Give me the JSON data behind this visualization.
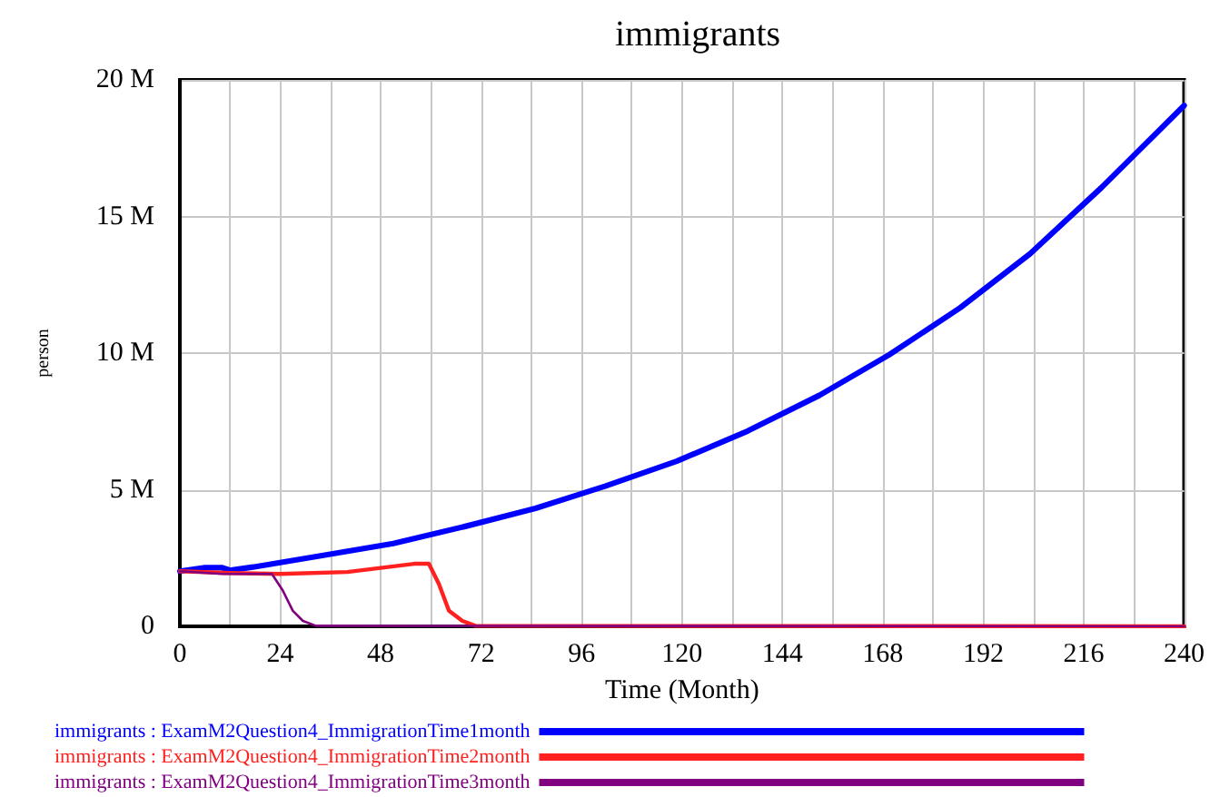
{
  "chart_data": {
    "type": "line",
    "title": "immigrants",
    "xlabel": "Time (Month)",
    "ylabel": "person",
    "xlim": [
      0,
      240
    ],
    "xticks": [
      0,
      {
        "value": 12,
        "label": null
      },
      24,
      {
        "value": 36,
        "label": null
      },
      48,
      {
        "value": 60,
        "label": null
      },
      72,
      {
        "value": 84,
        "label": null
      },
      96,
      {
        "value": 108,
        "label": null
      },
      120,
      {
        "value": 132,
        "label": null
      },
      144,
      {
        "value": 156,
        "label": null
      },
      168,
      {
        "value": 180,
        "label": null
      },
      192,
      {
        "value": 204,
        "label": null
      },
      216,
      {
        "value": 228,
        "label": null
      },
      240
    ],
    "ylim": [
      0,
      20000000
    ],
    "yticks": [
      0,
      {
        "value": 5000000,
        "label": "5 M"
      },
      {
        "value": 10000000,
        "label": "10 M"
      },
      {
        "value": 15000000,
        "label": "15 M"
      },
      {
        "value": 20000000,
        "label": "20 M"
      }
    ],
    "grid": true,
    "legend": "bottom",
    "marker": "none",
    "line_style": "solid",
    "series": [
      {
        "name": "immigrants : ExamM2Question4_ImmigrationTime1month",
        "color": "#0000ff",
        "x": [
          0,
          6,
          10,
          12,
          17.5,
          34,
          51,
          68,
          85,
          101.6,
          118.7,
          135.7,
          152.9,
          169.5,
          186.5,
          203.2,
          220.2,
          240
        ],
        "values": [
          2020000,
          2150000,
          2150000,
          2050000,
          2170000,
          2590000,
          3030000,
          3650000,
          4320000,
          5130000,
          6040000,
          7150000,
          8460000,
          9940000,
          11660000,
          13640000,
          16050000,
          19060000
        ]
      },
      {
        "name": "immigrants : ExamM2Question4_ImmigrationTime2month",
        "color": "#ff2020",
        "x": [
          0,
          12,
          24,
          40,
          56,
          59.5,
          61.9,
          64.3,
          67.5,
          70.6,
          240
        ],
        "values": [
          2020000,
          1950000,
          1920000,
          1990000,
          2290000,
          2290000,
          1550000,
          570000,
          200000,
          20000,
          0
        ]
      },
      {
        "name": "immigrants : ExamM2Question4_ImmigrationTime3month",
        "color": "#800080",
        "x": [
          0,
          10,
          22,
          24.6,
          27,
          29.4,
          32.5,
          240
        ],
        "values": [
          2020000,
          1920000,
          1920000,
          1310000,
          570000,
          200000,
          20000,
          0
        ]
      }
    ]
  }
}
